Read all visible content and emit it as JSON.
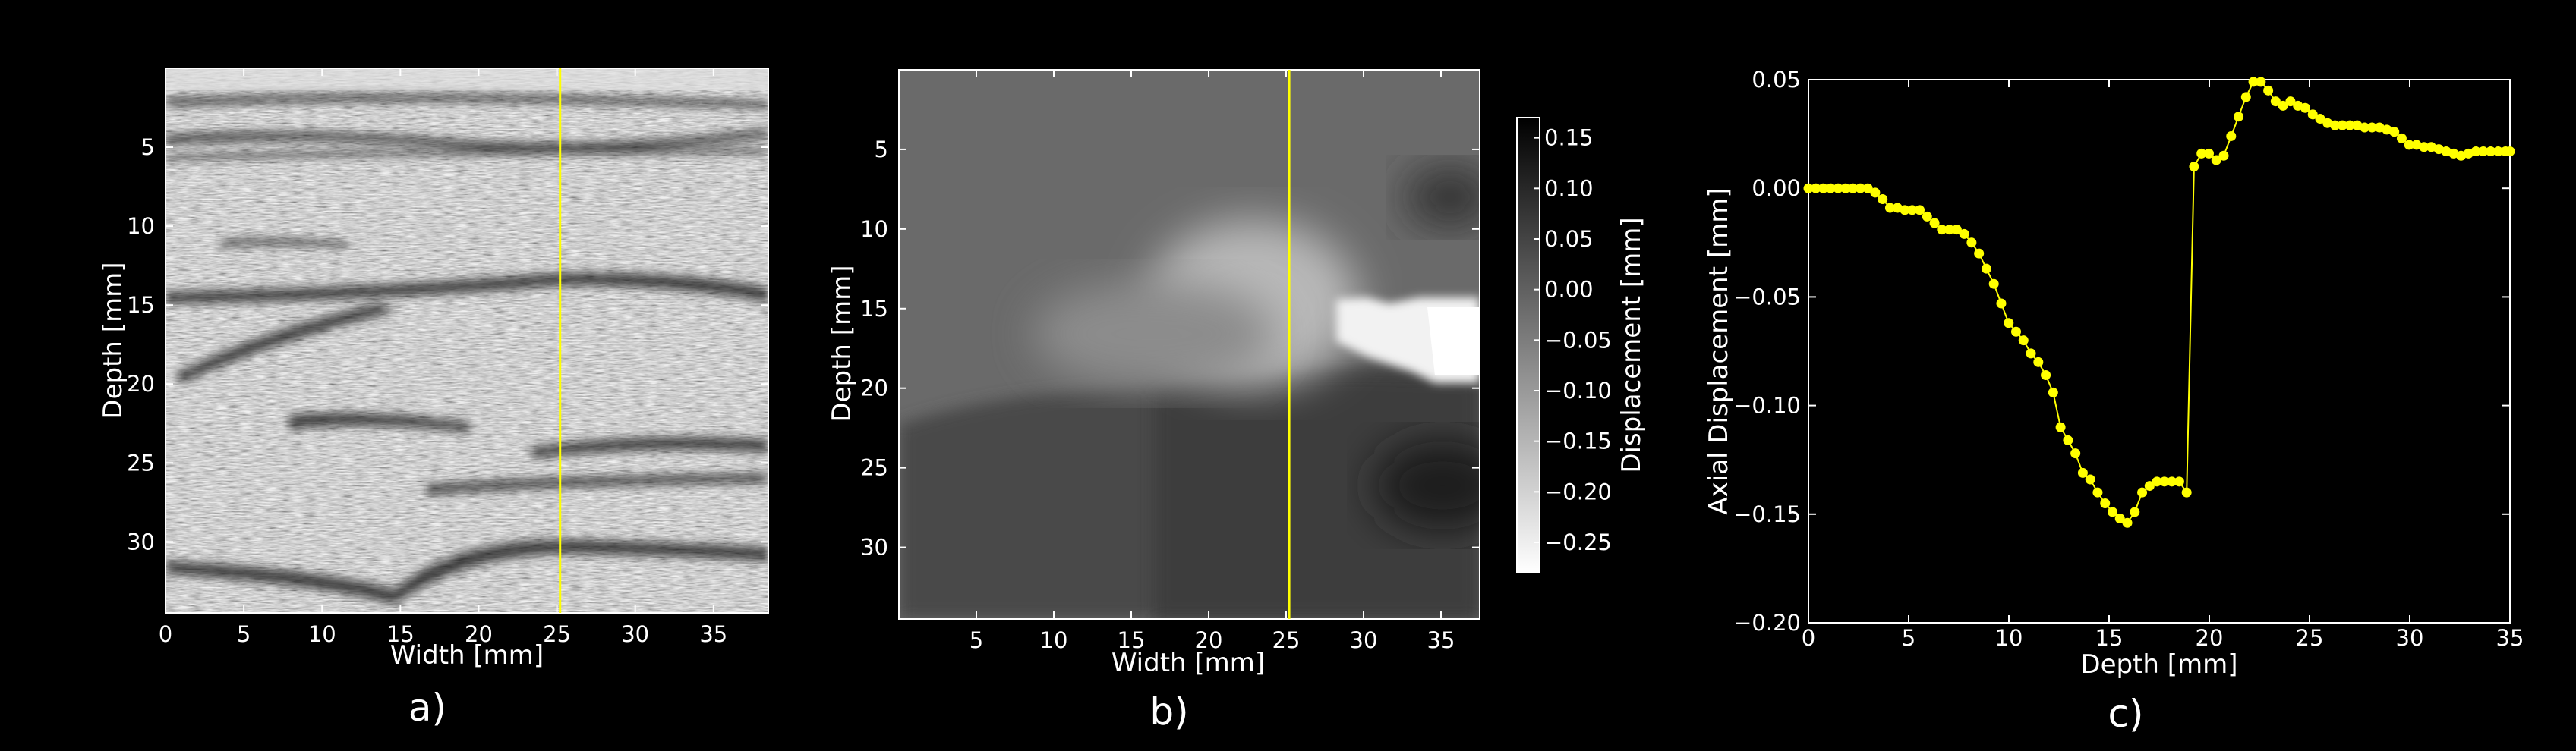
{
  "chart_data": [
    {
      "type": "heatmap",
      "panel_label": "a)",
      "xlabel": "Width [mm]",
      "ylabel": "Depth [mm]",
      "xlim": [
        0,
        38.5
      ],
      "ylim": [
        34.5,
        0
      ],
      "xticks": [
        0,
        5,
        10,
        15,
        20,
        25,
        30,
        35
      ],
      "yticks": [
        5,
        10,
        15,
        20,
        25,
        30
      ],
      "colormap": "gray",
      "marker_line_x": 25.2,
      "marker_line_color": "#ffff00"
    },
    {
      "type": "heatmap",
      "panel_label": "b)",
      "xlabel": "Width [mm]",
      "ylabel": "Depth [mm]",
      "xlim": [
        0,
        37.5
      ],
      "ylim": [
        34.5,
        0
      ],
      "xticks": [
        5,
        10,
        15,
        20,
        25,
        30,
        35
      ],
      "yticks": [
        5,
        10,
        15,
        20,
        25,
        30
      ],
      "colormap": "gray_r",
      "marker_line_x": 25.2,
      "marker_line_color": "#ffff00",
      "colorbar": {
        "label": "Displacement [mm]",
        "range": [
          -0.28,
          0.17
        ],
        "ticks": [
          "0.15",
          "0.10",
          "0.05",
          "0.00",
          "−0.05",
          "−0.10",
          "−0.15",
          "−0.20",
          "−0.25"
        ],
        "tick_values": [
          0.15,
          0.1,
          0.05,
          0.0,
          -0.05,
          -0.1,
          -0.15,
          -0.2,
          -0.25
        ]
      }
    },
    {
      "type": "line",
      "panel_label": "c)",
      "xlabel": "Depth [mm]",
      "ylabel": "Axial Displacement [mm]",
      "xlim": [
        0,
        35
      ],
      "ylim": [
        -0.2,
        0.05
      ],
      "xticks": [
        "0",
        "5",
        "10",
        "15",
        "20",
        "25",
        "30",
        "35"
      ],
      "yticks": [
        "0.05",
        "0.00",
        "−0.05",
        "−0.10",
        "−0.15",
        "−0.20"
      ],
      "ytick_values": [
        0.05,
        0.0,
        -0.05,
        -0.1,
        -0.15,
        -0.2
      ],
      "series_color": "#ffff00",
      "series": [
        {
          "x": [
            0,
            0.37,
            0.74,
            1.11,
            1.48,
            1.85,
            2.22,
            2.59,
            2.96,
            3.33,
            3.7,
            4.07,
            4.44,
            4.81,
            5.18,
            5.55,
            5.92,
            6.29,
            6.66,
            7.03,
            7.4,
            7.77,
            8.14,
            8.51,
            8.88,
            9.25,
            9.62,
            9.99,
            10.36,
            10.73,
            11.1,
            11.47,
            11.84,
            12.21,
            12.58,
            12.95,
            13.32,
            13.69,
            14.06,
            14.43,
            14.8,
            15.17,
            15.54,
            15.91,
            16.28,
            16.65,
            17.02,
            17.39,
            17.76,
            18.13,
            18.5,
            18.87,
            19.24,
            19.61,
            19.98,
            20.35,
            20.72,
            21.09,
            21.46,
            21.83,
            22.2,
            22.57,
            22.94,
            23.31,
            23.68,
            24.05,
            24.42,
            24.79,
            25.16,
            25.53,
            25.9,
            26.27,
            26.64,
            27.01,
            27.38,
            27.75,
            28.12,
            28.49,
            28.86,
            29.23,
            29.6,
            29.97,
            30.34,
            30.71,
            31.08,
            31.45,
            31.82,
            32.19,
            32.56,
            32.93,
            33.3,
            33.67,
            34.04,
            34.41,
            34.78,
            35.0
          ],
          "y": [
            0.0,
            0.0,
            0.0,
            0.0,
            0.0,
            0.0,
            0.0,
            0.0,
            0.0,
            -0.002,
            -0.005,
            -0.009,
            -0.009,
            -0.01,
            -0.01,
            -0.01,
            -0.013,
            -0.016,
            -0.019,
            -0.019,
            -0.019,
            -0.021,
            -0.025,
            -0.03,
            -0.037,
            -0.044,
            -0.053,
            -0.062,
            -0.066,
            -0.07,
            -0.076,
            -0.08,
            -0.086,
            -0.094,
            -0.11,
            -0.116,
            -0.122,
            -0.131,
            -0.134,
            -0.14,
            -0.145,
            -0.149,
            -0.152,
            -0.154,
            -0.149,
            -0.14,
            -0.137,
            -0.135,
            -0.135,
            -0.135,
            -0.135,
            -0.14,
            0.01,
            0.016,
            0.016,
            0.013,
            0.015,
            0.024,
            0.033,
            0.042,
            0.049,
            0.049,
            0.045,
            0.04,
            0.038,
            0.04,
            0.038,
            0.037,
            0.034,
            0.032,
            0.03,
            0.029,
            0.029,
            0.029,
            0.029,
            0.028,
            0.028,
            0.028,
            0.027,
            0.026,
            0.023,
            0.02,
            0.02,
            0.019,
            0.019,
            0.018,
            0.017,
            0.016,
            0.015,
            0.016,
            0.017,
            0.017,
            0.017,
            0.017,
            0.017,
            0.017
          ]
        }
      ]
    }
  ]
}
